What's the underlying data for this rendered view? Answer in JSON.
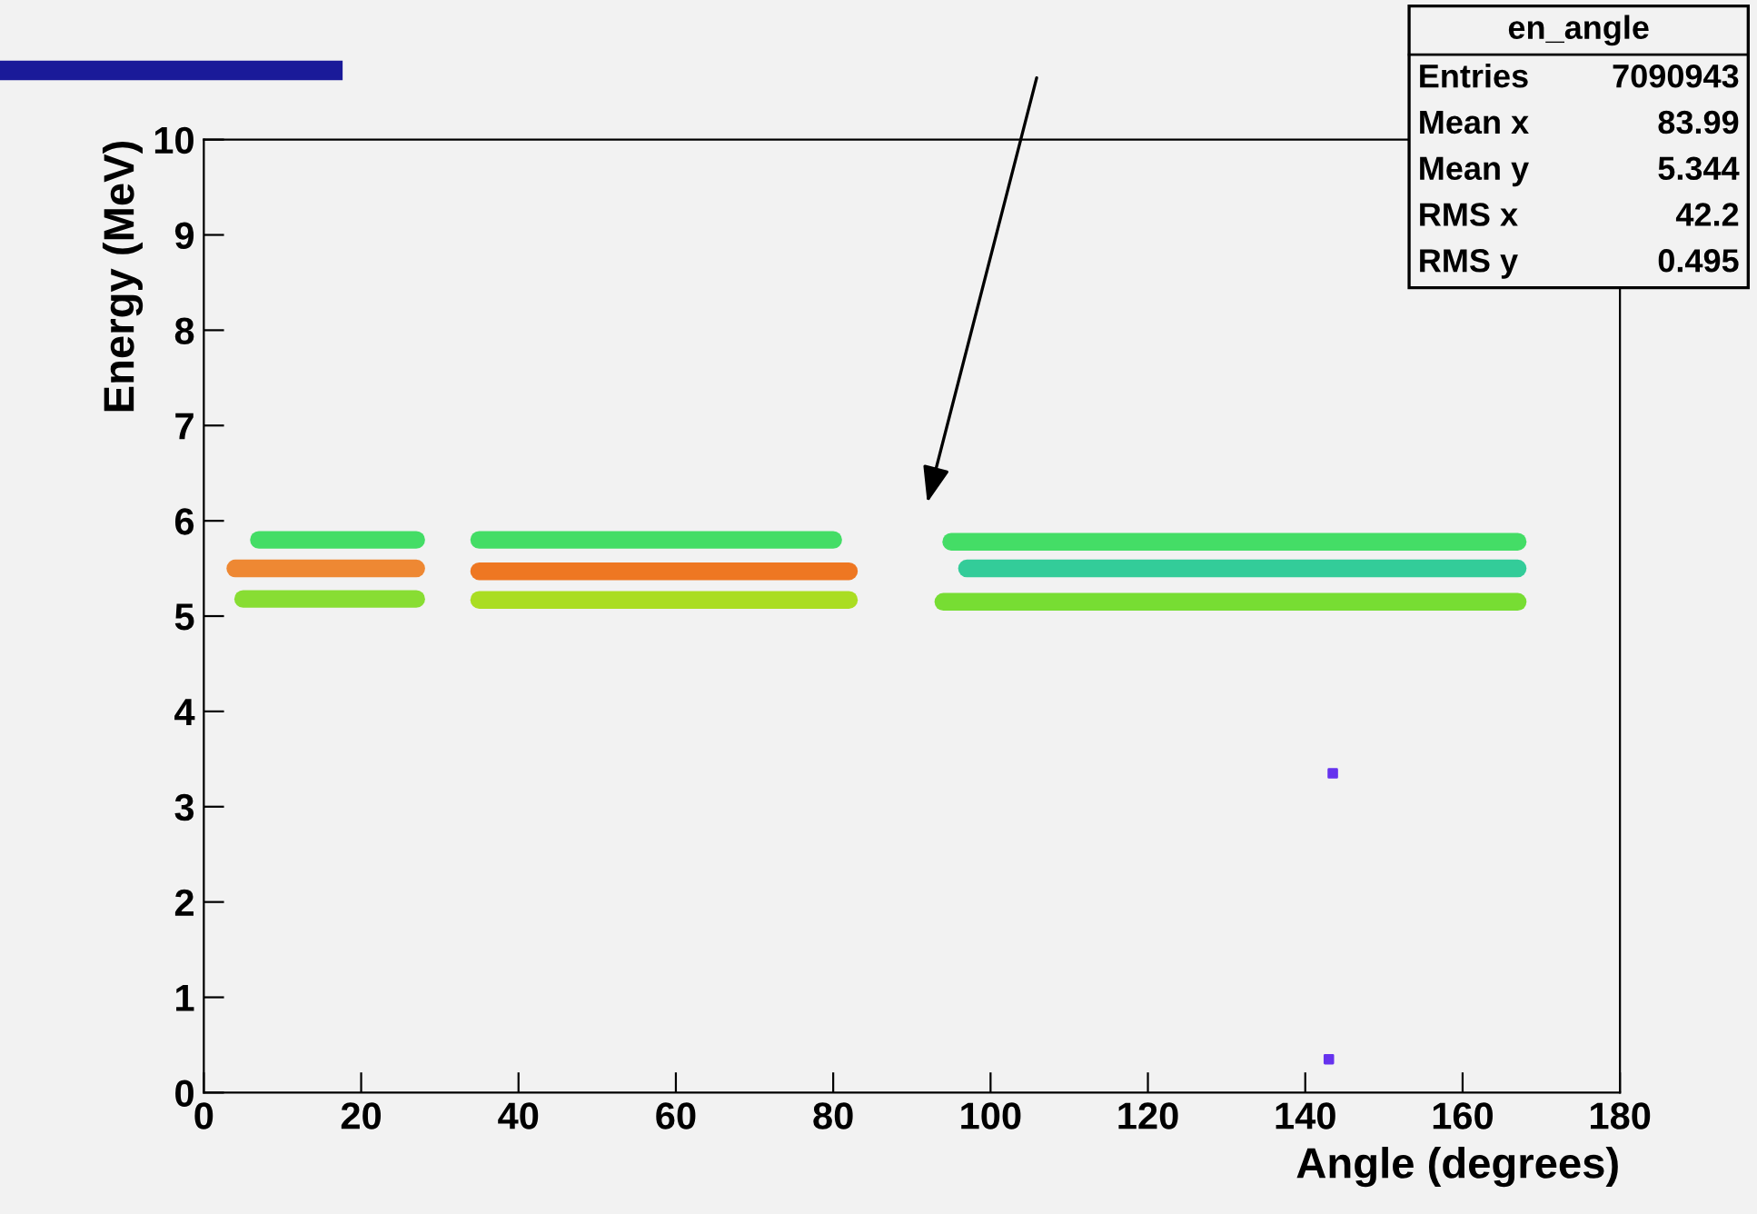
{
  "chart_data": {
    "type": "line",
    "xlabel": "Angle (degrees)",
    "ylabel": "Energy (MeV)",
    "xlim": [
      0,
      180
    ],
    "xticks": [
      0,
      20,
      40,
      60,
      80,
      100,
      120,
      140,
      160,
      180
    ],
    "ylim": [
      0,
      10
    ],
    "yticks": [
      0,
      1,
      2,
      3,
      4,
      5,
      6,
      7,
      8,
      9,
      10
    ],
    "grid": false,
    "legend": false,
    "marker": "none",
    "line_style": "solid",
    "series": [
      {
        "color": "#44dd66",
        "x": [
          7,
          27
        ],
        "values": [
          5.8,
          5.8
        ]
      },
      {
        "color": "#ee8833",
        "x": [
          4,
          27
        ],
        "values": [
          5.5,
          5.5
        ]
      },
      {
        "color": "#88dd33",
        "x": [
          5,
          27
        ],
        "values": [
          5.18,
          5.18
        ]
      },
      {
        "color": "#44dd66",
        "x": [
          35,
          80
        ],
        "values": [
          5.8,
          5.8
        ]
      },
      {
        "color": "#ee7722",
        "x": [
          35,
          82
        ],
        "values": [
          5.47,
          5.47
        ]
      },
      {
        "color": "#aadd22",
        "x": [
          35,
          82
        ],
        "values": [
          5.17,
          5.17
        ]
      },
      {
        "color": "#44dd66",
        "x": [
          95,
          167
        ],
        "values": [
          5.78,
          5.78
        ]
      },
      {
        "color": "#33cc99",
        "x": [
          97,
          167
        ],
        "values": [
          5.5,
          5.5
        ]
      },
      {
        "color": "#77dd33",
        "x": [
          94,
          167
        ],
        "values": [
          5.15,
          5.15
        ]
      },
      {
        "type": "scatter",
        "marker": "square",
        "color": "#6633ee",
        "x": [
          143.5,
          143
        ],
        "values": [
          3.35,
          0.35
        ]
      }
    ],
    "annotations": [
      "en_angle",
      "Entries 7090943",
      "Mean x 83.99",
      "Mean y 5.344",
      "RMS x 42.2",
      "RMS y 0.495"
    ]
  }
}
